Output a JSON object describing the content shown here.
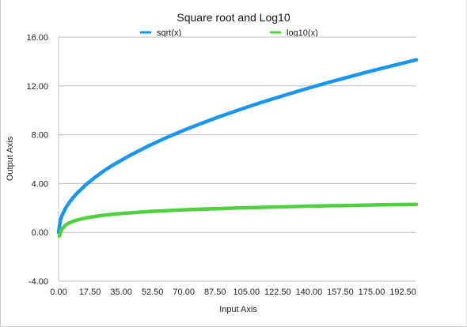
{
  "chart_data": {
    "type": "line",
    "title": "Square root and Log10",
    "xlabel": "Input Axis",
    "ylabel": "Output Axis",
    "xlim": [
      0,
      200
    ],
    "ylim": [
      -4,
      16
    ],
    "grid": true,
    "legend_position": "top",
    "x_ticks": [
      "0.00",
      "17.50",
      "35.00",
      "52.50",
      "70.00",
      "87.50",
      "105.00",
      "122.50",
      "140.00",
      "157.50",
      "175.00",
      "192.50"
    ],
    "y_ticks": [
      "-4.00",
      "0.00",
      "4.00",
      "8.00",
      "12.00",
      "16.00"
    ],
    "series": [
      {
        "name": "sqrt(x)",
        "color": "#1a96f0",
        "x": [
          0,
          1,
          2,
          4,
          6,
          8,
          10,
          15,
          20,
          25,
          30,
          40,
          50,
          60,
          70,
          80,
          90,
          100,
          110,
          120,
          130,
          140,
          150,
          160,
          170,
          180,
          190,
          200
        ],
        "y": [
          0,
          1,
          1.41,
          2,
          2.45,
          2.83,
          3.16,
          3.87,
          4.47,
          5,
          5.48,
          6.32,
          7.07,
          7.75,
          8.37,
          8.94,
          9.49,
          10,
          10.49,
          10.95,
          11.4,
          11.83,
          12.25,
          12.65,
          13.04,
          13.42,
          13.78,
          14.14
        ]
      },
      {
        "name": "log10(x)",
        "color": "#4fd13d",
        "x": [
          0.5,
          1,
          2,
          4,
          6,
          8,
          10,
          15,
          20,
          25,
          30,
          40,
          50,
          60,
          70,
          80,
          90,
          100,
          110,
          120,
          130,
          140,
          150,
          160,
          170,
          180,
          190,
          200
        ],
        "y": [
          -0.3,
          0,
          0.3,
          0.6,
          0.78,
          0.9,
          1,
          1.18,
          1.3,
          1.4,
          1.48,
          1.6,
          1.7,
          1.78,
          1.85,
          1.9,
          1.95,
          2,
          2.04,
          2.08,
          2.11,
          2.15,
          2.18,
          2.2,
          2.23,
          2.26,
          2.28,
          2.3
        ]
      }
    ]
  }
}
